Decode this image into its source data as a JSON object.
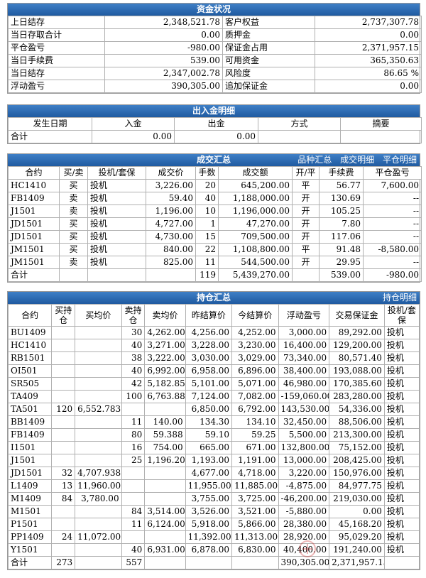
{
  "funds": {
    "title": "资金状况",
    "rows": [
      [
        "上日结存",
        "2,348,521.78",
        "客户权益",
        "2,737,307.78"
      ],
      [
        "当日存取合计",
        "0.00",
        "质押金",
        "0.00"
      ],
      [
        "平仓盈亏",
        "-980.00",
        "保证金占用",
        "2,371,957.15"
      ],
      [
        "当日手续费",
        "539.00",
        "可用资金",
        "365,350.63"
      ],
      [
        "当日结存",
        "2,347,002.78",
        "风险度",
        "86.65 %"
      ],
      [
        "浮动盈亏",
        "390,305.00",
        "追加保证金",
        "0.00"
      ]
    ]
  },
  "inout": {
    "title": "出入金明细",
    "headers": [
      "发生日期",
      "入金",
      "出金",
      "方式",
      "摘要"
    ],
    "total": [
      "合计",
      "0.00",
      "0.00",
      "",
      ""
    ]
  },
  "trades": {
    "title": "成交汇总",
    "links": [
      "品种汇总",
      "成交明细",
      "平仓明细"
    ],
    "headers": [
      "合约",
      "买/卖",
      "投机/套保",
      "成交价",
      "手数",
      "成交额",
      "开/平",
      "手续费",
      "平仓盈亏"
    ],
    "rows": [
      [
        "HC1410",
        "买",
        "投机",
        "3,226.00",
        "20",
        "645,200.00",
        "平",
        "56.77",
        "7,600.00"
      ],
      [
        "FB1409",
        "卖",
        "投机",
        "59.40",
        "40",
        "1,188,000.00",
        "开",
        "130.69",
        "--"
      ],
      [
        "J1501",
        "卖",
        "投机",
        "1,196.00",
        "10",
        "1,196,000.00",
        "开",
        "105.25",
        "--"
      ],
      [
        "JD1501",
        "买",
        "投机",
        "4,727.00",
        "1",
        "47,270.00",
        "开",
        "7.80",
        "--"
      ],
      [
        "JD1501",
        "买",
        "投机",
        "4,730.00",
        "15",
        "709,500.00",
        "开",
        "117.06",
        "--"
      ],
      [
        "JM1501",
        "买",
        "投机",
        "840.00",
        "22",
        "1,108,800.00",
        "平",
        "91.48",
        "-8,580.00"
      ],
      [
        "JM1501",
        "卖",
        "投机",
        "825.00",
        "11",
        "544,500.00",
        "开",
        "29.95",
        "--"
      ]
    ],
    "total": [
      "合计",
      "",
      "",
      "",
      "119",
      "5,439,270.00",
      "",
      "539.00",
      "-980.00"
    ]
  },
  "positions": {
    "title": "持仓汇总",
    "link": "持仓明细",
    "headers": [
      "合约",
      "买持仓",
      "买均价",
      "卖持仓",
      "卖均价",
      "昨结算价",
      "今结算价",
      "浮动盈亏",
      "交易保证金",
      "投机/套保"
    ],
    "rows": [
      [
        "BU1409",
        "",
        "",
        "30",
        "4,262.00",
        "4,256.00",
        "4,252.00",
        "3,000.00",
        "89,292.00",
        "投机"
      ],
      [
        "HC1410",
        "",
        "",
        "40",
        "3,271.00",
        "3,228.00",
        "3,230.00",
        "16,400.00",
        "129,200.00",
        "投机"
      ],
      [
        "RB1501",
        "",
        "",
        "38",
        "3,222.00",
        "3,030.00",
        "3,029.00",
        "73,340.00",
        "80,571.40",
        "投机"
      ],
      [
        "OI501",
        "",
        "",
        "40",
        "6,992.00",
        "6,958.00",
        "6,896.00",
        "38,400.00",
        "193,088.00",
        "投机"
      ],
      [
        "SR505",
        "",
        "",
        "42",
        "5,182.857",
        "5,101.00",
        "5,071.00",
        "46,980.00",
        "170,385.60",
        "投机"
      ],
      [
        "TA409",
        "",
        "",
        "100",
        "6,763.88",
        "7,124.00",
        "7,082.00",
        "-159,060.00",
        "283,280.00",
        "投机"
      ],
      [
        "TA501",
        "120",
        "6,552.783",
        "",
        "",
        "6,850.00",
        "6,792.00",
        "143,530.00",
        "54,336.00",
        "投机"
      ],
      [
        "BB1409",
        "",
        "",
        "11",
        "140.00",
        "134.30",
        "134.10",
        "32,450.00",
        "88,506.00",
        "投机"
      ],
      [
        "FB1409",
        "",
        "",
        "80",
        "59.388",
        "59.10",
        "59.25",
        "5,500.00",
        "213,300.00",
        "投机"
      ],
      [
        "I1501",
        "",
        "",
        "16",
        "754.00",
        "665.00",
        "671.00",
        "132,800.00",
        "75,152.00",
        "投机"
      ],
      [
        "J1501",
        "",
        "",
        "25",
        "1,196.20",
        "1,193.00",
        "1,191.00",
        "13,000.00",
        "208,425.00",
        "投机"
      ],
      [
        "JD1501",
        "32",
        "4,707.938",
        "",
        "",
        "4,677.00",
        "4,718.00",
        "3,220.00",
        "150,976.00",
        "投机"
      ],
      [
        "L1409",
        "13",
        "11,960.00",
        "",
        "",
        "11,955.00",
        "11,885.00",
        "-4,875.00",
        "84,977.75",
        "投机"
      ],
      [
        "M1409",
        "84",
        "3,780.00",
        "",
        "",
        "3,755.00",
        "3,725.00",
        "-46,200.00",
        "219,030.00",
        "投机"
      ],
      [
        "M1501",
        "",
        "",
        "84",
        "3,514.00",
        "3,526.00",
        "3,521.00",
        "-5,880.00",
        "0.00",
        "投机"
      ],
      [
        "P1501",
        "",
        "",
        "11",
        "6,124.00",
        "5,918.00",
        "5,866.00",
        "28,380.00",
        "45,168.20",
        "投机"
      ],
      [
        "PP1409",
        "24",
        "11,072.00",
        "",
        "",
        "11,392.00",
        "11,313.00",
        "28,920.00",
        "95,029.20",
        "投机"
      ],
      [
        "Y1501",
        "",
        "",
        "40",
        "6,931.00",
        "6,878.00",
        "6,830.00",
        "40,400.00",
        "191,240.00",
        "投机"
      ]
    ],
    "total": [
      "合计",
      "273",
      "",
      "557",
      "",
      "",
      "",
      "390,305.00",
      "2,371,957.15",
      ""
    ]
  }
}
